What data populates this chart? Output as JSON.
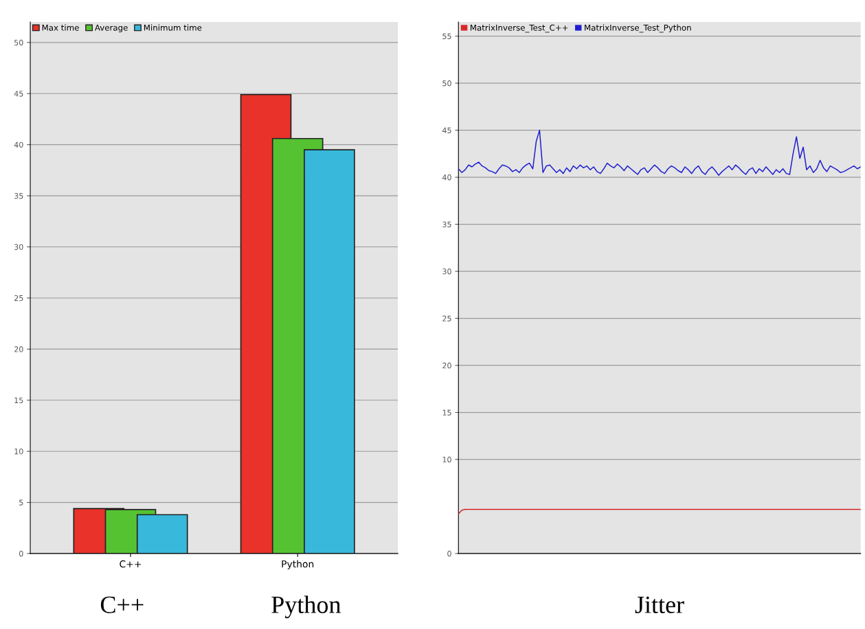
{
  "chart_data": [
    {
      "type": "bar",
      "categories": [
        "C++",
        "Python"
      ],
      "ylim": [
        0,
        52
      ],
      "yticks": [
        0,
        5,
        10,
        15,
        20,
        25,
        30,
        35,
        40,
        45,
        50
      ],
      "grid": "y",
      "legend": "top left",
      "annotations": [
        "C++",
        "Python"
      ],
      "series": [
        {
          "name": "Max time",
          "color": "#e8322a",
          "values": [
            4.4,
            44.9
          ]
        },
        {
          "name": "Average",
          "color": "#55c232",
          "values": [
            4.3,
            40.6
          ]
        },
        {
          "name": "Minimum time",
          "color": "#38b8db",
          "values": [
            3.8,
            39.5
          ]
        }
      ]
    },
    {
      "type": "line",
      "categories": [
        null,
        null,
        null,
        null,
        null,
        null,
        null,
        null,
        null,
        null,
        null,
        null,
        null,
        null,
        null,
        null,
        null,
        null,
        null,
        null,
        null,
        null,
        null,
        null,
        null,
        null,
        null,
        null,
        null,
        null,
        null,
        null,
        null,
        null,
        null,
        null,
        null,
        null,
        null,
        null,
        null,
        null,
        null,
        null,
        null,
        null,
        null,
        null,
        null,
        null,
        null,
        null,
        null,
        null,
        null,
        null,
        null,
        null,
        null,
        null,
        null,
        null,
        null,
        null,
        null,
        null,
        null,
        null,
        null,
        null,
        null,
        null,
        null,
        null,
        null,
        null,
        null,
        null,
        null,
        null,
        null,
        null,
        null,
        null,
        null,
        null,
        null,
        null,
        null,
        null,
        null,
        null,
        null,
        null,
        null,
        null,
        null,
        null,
        null,
        null,
        null,
        null,
        null,
        null,
        null,
        null,
        null,
        null,
        null,
        null,
        null,
        null,
        null,
        null,
        null,
        null,
        null,
        null,
        null,
        null
      ],
      "ylim": [
        0,
        56.5
      ],
      "yticks": [
        0,
        10,
        15,
        20,
        25,
        30,
        35,
        40,
        45,
        50,
        55
      ],
      "grid": "y",
      "legend": "top left",
      "annotations": [
        "Jitter"
      ],
      "series": [
        {
          "name": "MatrixInverse_Test_C++",
          "color": "#d62828",
          "values": [
            4.2,
            4.6,
            4.7,
            4.7,
            4.7,
            4.7,
            4.7,
            4.7,
            4.7,
            4.7,
            4.7,
            4.7,
            4.7,
            4.7,
            4.7,
            4.7,
            4.7,
            4.7,
            4.7,
            4.7,
            4.7,
            4.7,
            4.7,
            4.7,
            4.7,
            4.7,
            4.7,
            4.7,
            4.7,
            4.7,
            4.7,
            4.7,
            4.7,
            4.7,
            4.7,
            4.7,
            4.7,
            4.7,
            4.7,
            4.7,
            4.7,
            4.7,
            4.7,
            4.7,
            4.7,
            4.7,
            4.7,
            4.7,
            4.7,
            4.7,
            4.7,
            4.7,
            4.7,
            4.7,
            4.7,
            4.7,
            4.7,
            4.7,
            4.7,
            4.7,
            4.7,
            4.7,
            4.7,
            4.7,
            4.7,
            4.7,
            4.7,
            4.7,
            4.7,
            4.7,
            4.7,
            4.7,
            4.7,
            4.7,
            4.7,
            4.7,
            4.7,
            4.7,
            4.7,
            4.7,
            4.7,
            4.7,
            4.7,
            4.7,
            4.7,
            4.7,
            4.7,
            4.7,
            4.7,
            4.7,
            4.7,
            4.7,
            4.7,
            4.7,
            4.7,
            4.7,
            4.7,
            4.7,
            4.7,
            4.7,
            4.7,
            4.7,
            4.7,
            4.7,
            4.7,
            4.7,
            4.7,
            4.7,
            4.7,
            4.7,
            4.7,
            4.7,
            4.7,
            4.7,
            4.7,
            4.7,
            4.7,
            4.7,
            4.7,
            4.7
          ]
        },
        {
          "name": "MatrixInverse_Test_Python",
          "color": "#1f1fd0",
          "values": [
            40.9,
            40.5,
            40.8,
            41.3,
            41.1,
            41.4,
            41.6,
            41.2,
            41.0,
            40.7,
            40.6,
            40.4,
            40.9,
            41.3,
            41.2,
            41.0,
            40.6,
            40.8,
            40.5,
            41.0,
            41.3,
            41.5,
            40.9,
            43.8,
            45.0,
            40.5,
            41.2,
            41.3,
            40.9,
            40.5,
            40.8,
            40.4,
            41.0,
            40.6,
            41.2,
            40.9,
            41.3,
            41.0,
            41.2,
            40.8,
            41.1,
            40.6,
            40.4,
            40.9,
            41.5,
            41.2,
            41.0,
            41.4,
            41.1,
            40.7,
            41.2,
            40.9,
            40.6,
            40.3,
            40.8,
            41.0,
            40.5,
            40.9,
            41.3,
            41.0,
            40.6,
            40.4,
            40.9,
            41.2,
            41.0,
            40.7,
            40.5,
            41.1,
            40.8,
            40.4,
            40.9,
            41.2,
            40.6,
            40.3,
            40.8,
            41.1,
            40.7,
            40.2,
            40.6,
            40.9,
            41.2,
            40.8,
            41.3,
            41.0,
            40.6,
            40.3,
            40.8,
            41.0,
            40.4,
            40.9,
            40.6,
            41.1,
            40.7,
            40.3,
            40.8,
            40.5,
            40.9,
            40.4,
            40.3,
            42.5,
            44.3,
            42.0,
            43.2,
            40.8,
            41.2,
            40.5,
            40.9,
            41.8,
            41.0,
            40.6,
            41.2,
            41.0,
            40.8,
            40.5,
            40.6,
            40.8,
            41.0,
            41.2,
            40.9,
            41.1
          ]
        }
      ]
    }
  ]
}
